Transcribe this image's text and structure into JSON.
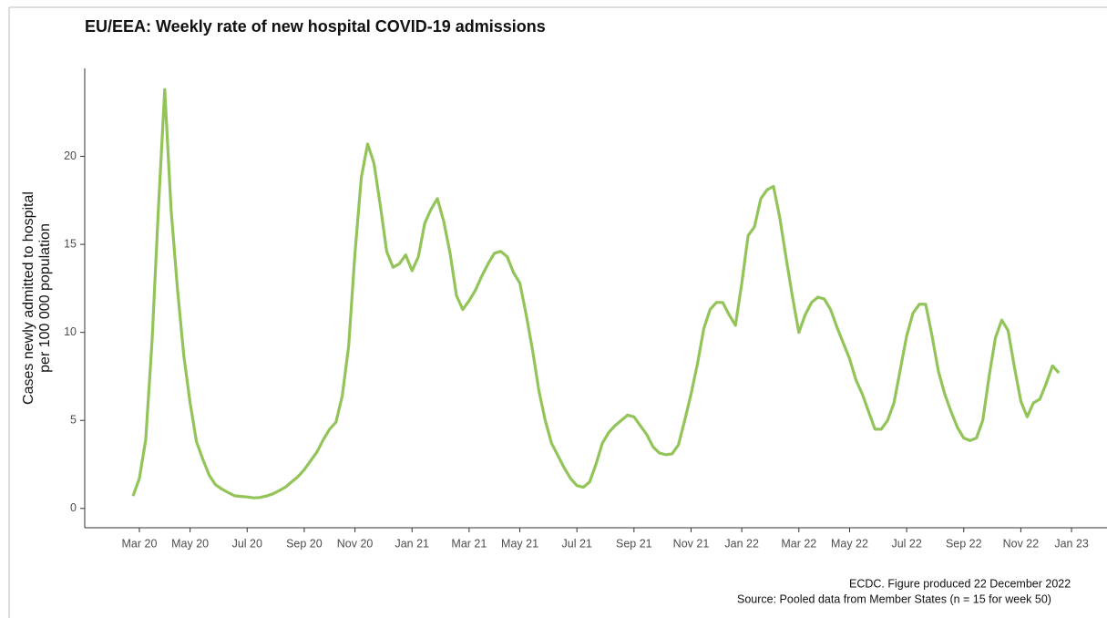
{
  "chart_data": {
    "type": "line",
    "title": "EU/EEA: Weekly rate of new hospital COVID-19 admissions",
    "y_label": [
      "Cases newly admitted to hospital",
      "per 100 000 population"
    ],
    "footnotes": [
      "ECDC. Figure produced 22 December 2022",
      "Source: Pooled data from Member States (n = 15 for week 50)"
    ],
    "categories": [
      null,
      "Mar 20",
      null,
      null,
      null,
      null,
      null,
      null,
      null,
      "May 20",
      null,
      null,
      null,
      null,
      null,
      null,
      null,
      null,
      "Jul 20",
      null,
      null,
      null,
      null,
      null,
      null,
      null,
      null,
      "Sep 20",
      null,
      null,
      null,
      null,
      null,
      null,
      null,
      "Nov 20",
      null,
      null,
      null,
      null,
      null,
      null,
      null,
      null,
      "Jan 21",
      null,
      null,
      null,
      null,
      null,
      null,
      null,
      null,
      "Mar 21",
      null,
      null,
      null,
      null,
      null,
      null,
      null,
      "May 21",
      null,
      null,
      null,
      null,
      null,
      null,
      null,
      null,
      "Jul 21",
      null,
      null,
      null,
      null,
      null,
      null,
      null,
      null,
      "Sep 21",
      null,
      null,
      null,
      null,
      null,
      null,
      null,
      null,
      "Nov 21",
      null,
      null,
      null,
      null,
      null,
      null,
      null,
      "Jan 22",
      null,
      null,
      null,
      null,
      null,
      null,
      null,
      null,
      "Mar 22",
      null,
      null,
      null,
      null,
      null,
      null,
      null,
      "May 22",
      null,
      null,
      null,
      null,
      null,
      null,
      null,
      null,
      "Jul 22",
      null,
      null,
      null,
      null,
      null,
      null,
      null,
      null,
      "Sep 22",
      null,
      null,
      null,
      null,
      null,
      null,
      null,
      null,
      "Nov 22",
      null,
      null,
      null,
      null,
      null,
      null,
      null,
      "Jan 23"
    ],
    "series": [
      {
        "color": "#93c45a",
        "values": [
          0.7,
          1.7,
          3.9,
          9.5,
          17,
          23.8,
          17,
          12.5,
          8.7,
          6,
          3.8,
          2.8,
          1.9,
          1.35,
          1.1,
          0.9,
          0.72,
          0.68,
          0.65,
          0.6,
          0.62,
          0.7,
          0.82,
          1.0,
          1.2,
          1.5,
          1.8,
          2.2,
          2.7,
          3.2,
          3.9,
          4.5,
          4.9,
          6.4,
          9.2,
          14.5,
          18.8,
          20.7,
          19.6,
          17.2,
          14.6,
          13.7,
          13.9,
          14.4,
          13.5,
          14.3,
          16.2,
          17,
          17.6,
          16.3,
          14.5,
          12.1,
          11.3,
          11.8,
          12.4,
          13.2,
          13.9,
          14.5,
          14.6,
          14.3,
          13.4,
          12.8,
          11,
          9,
          6.7,
          5,
          3.7,
          3,
          2.3,
          1.7,
          1.3,
          1.2,
          1.5,
          2.5,
          3.7,
          4.3,
          4.7,
          5,
          5.3,
          5.2,
          4.7,
          4.2,
          3.5,
          3.15,
          3.05,
          3.1,
          3.6,
          5,
          6.5,
          8.2,
          10.2,
          11.3,
          11.7,
          11.7,
          11.0,
          10.4,
          12.8,
          15.5,
          16,
          17.6,
          18.1,
          18.3,
          16.5,
          14.2,
          12,
          10,
          11,
          11.7,
          12,
          11.9,
          11.3,
          10.3,
          9.4,
          8.5,
          7.3,
          6.5,
          5.5,
          4.5,
          4.5,
          5,
          6,
          7.9,
          9.8,
          11.1,
          11.6,
          11.6,
          9.8,
          7.8,
          6.5,
          5.5,
          4.6,
          4,
          3.85,
          4,
          5,
          7.5,
          9.7,
          10.7,
          10.1,
          8,
          6.1,
          5.2,
          6.0,
          6.2,
          7.1,
          8.1,
          7.7,
          null,
          null
        ]
      }
    ],
    "ylim": [
      -1.1,
      25
    ],
    "yticks": [
      0,
      5,
      10,
      15,
      20
    ],
    "grid": false
  }
}
